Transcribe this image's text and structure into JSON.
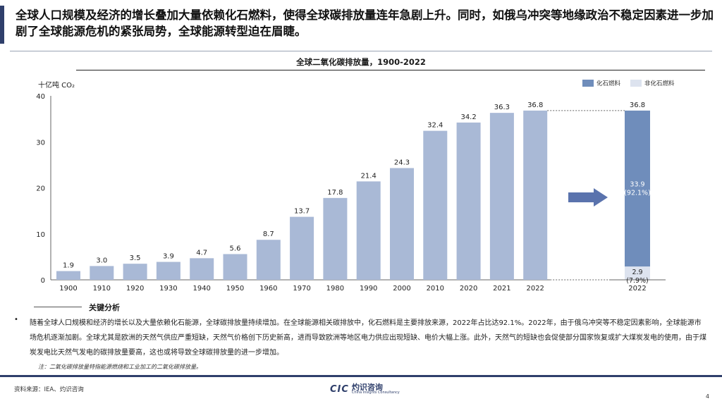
{
  "headline": "全球人口规模及经济的增长叠加大量依赖化石燃料，使得全球碳排放量连年急剧上升。同时，如俄乌冲突等地缘政治不稳定因素进一步加剧了全球能源危机的紧张局势，全球能源转型迫在眉睫。",
  "chart_title": "全球二氧化碳排放量，1900-2022",
  "unit_label": "十亿吨 CO₂",
  "legend": {
    "fossil": "化石燃料",
    "non_fossil": "非化石燃料"
  },
  "colors": {
    "bar": "#a9b9d6",
    "fossil": "#6f8dbb",
    "non_fossil": "#dde3ef",
    "accent": "#2f3f6b",
    "arrow": "#5a73ad"
  },
  "analysis_heading": "关键分析",
  "analysis_text": "随着全球人口规模和经济的增长以及大量依赖化石能源，全球碳排放量持续增加。在全球能源相关碳排放中，化石燃料是主要排放来源，2022年占比达92.1%。2022年，由于俄乌冲突等不稳定因素影响，全球能源市场危机逐渐加剧。全球尤其是欧洲的天然气供应严重短缺，天然气价格创下历史新高，进而导致欧洲等地区电力供应出现短缺、电价大幅上涨。此外，天然气的短缺也会促使部分国家恢复或扩大煤炭发电的使用，由于煤炭发电比天然气发电的碳排放量要高，这也或将导致全球碳排放量的进一步增加。",
  "note": "注：二氧化碳排放量特指能源燃烧和工业加工的二氧化碳排放量。",
  "source": "资料来源：IEA、灼识咨询",
  "page_number": "4",
  "logo": {
    "mark": "CIC",
    "cn": "灼识咨询",
    "en": "China Insights Consultancy"
  },
  "chart_data": {
    "type": "bar",
    "title": "全球二氧化碳排放量，1900-2022",
    "ylabel": "十亿吨 CO₂",
    "ylim": [
      0,
      40
    ],
    "yticks": [
      0,
      10,
      20,
      30,
      40
    ],
    "categories": [
      "1900",
      "1910",
      "1920",
      "1930",
      "1940",
      "1950",
      "1960",
      "1970",
      "1980",
      "1990",
      "2000",
      "2010",
      "2020",
      "2021",
      "2022"
    ],
    "values": [
      1.9,
      3.0,
      3.5,
      3.9,
      4.7,
      5.6,
      8.7,
      13.7,
      17.8,
      21.4,
      24.3,
      32.4,
      34.2,
      36.3,
      36.8
    ],
    "breakdown": {
      "category": "2022",
      "total": 36.8,
      "series": [
        {
          "name": "化石燃料",
          "value": 33.9,
          "share": "(92.1%)"
        },
        {
          "name": "非化石燃料",
          "value": 2.9,
          "share": "(7.9%)"
        }
      ]
    },
    "legend_position": "top-right",
    "grid": false
  }
}
